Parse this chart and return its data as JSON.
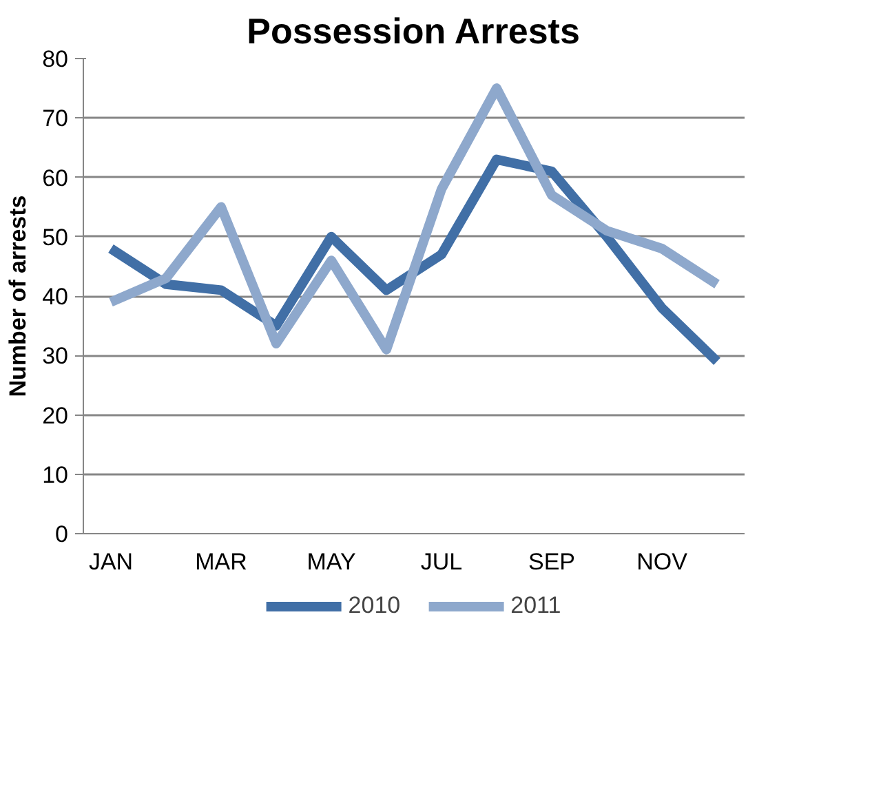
{
  "chart_data": {
    "type": "line",
    "title": "Possession Arrests",
    "ylabel": "Number of arrests",
    "categories": [
      "JAN",
      null,
      "MAR",
      null,
      "MAY",
      null,
      "JUL",
      null,
      "SEP",
      null,
      "NOV",
      null
    ],
    "series": [
      {
        "name": "2010",
        "color": "#416fa6",
        "values": [
          48,
          42,
          41,
          35,
          50,
          41,
          47,
          63,
          61,
          50,
          38,
          29
        ]
      },
      {
        "name": "2011",
        "color": "#8ea8cc",
        "values": [
          39,
          43,
          55,
          32,
          46,
          31,
          58,
          75,
          57,
          51,
          48,
          42
        ]
      }
    ],
    "ylim": [
      0,
      80
    ],
    "yticks": [
      0,
      10,
      20,
      30,
      40,
      50,
      60,
      70,
      80
    ],
    "grid": "y",
    "legend": "bottom",
    "line_style": "solid",
    "marker": "none"
  }
}
